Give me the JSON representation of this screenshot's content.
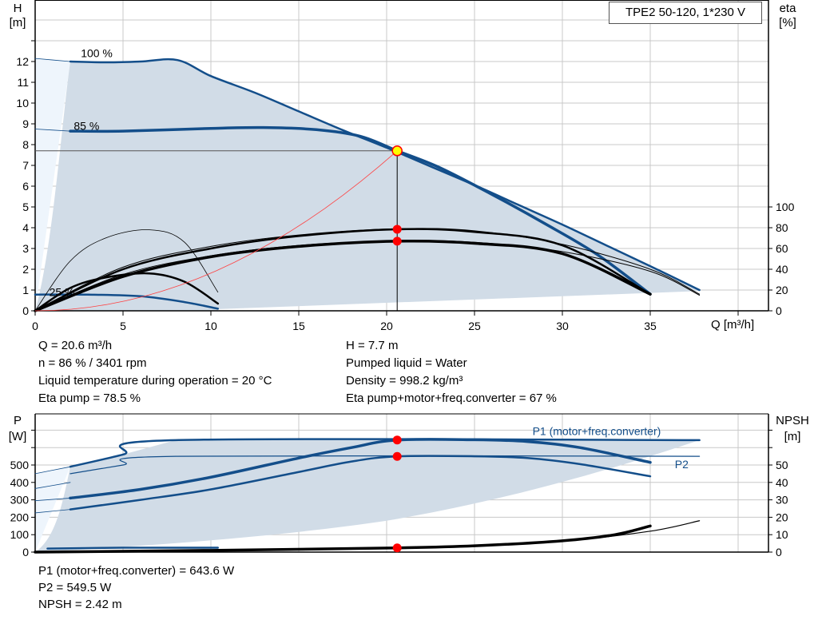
{
  "pump_label": "TPE2 50-120, 1*230 V",
  "colors": {
    "curve": "#134e8a",
    "fill": "#d1dce7",
    "fill_light": "#eef5fc",
    "duty_point": "#ff0000",
    "duty_highlight": "#ffff00",
    "system_curve": "#ff4040",
    "grid": "#c8c8c8"
  },
  "chart_data": [
    {
      "type": "line",
      "title": "",
      "xlabel": "Q [m³/h]",
      "ylabel": "H\n[m]",
      "y_unit_label": "[m]",
      "y_name": "H",
      "y2_name": "eta",
      "y2_unit_label": "[%]",
      "xlim": [
        0,
        41.7
      ],
      "ylim": [
        0,
        15
      ],
      "y2lim": [
        0,
        300
      ],
      "xticks": [
        0,
        5,
        10,
        15,
        20,
        25,
        30,
        35
      ],
      "yticks": [
        0,
        1,
        2,
        3,
        4,
        5,
        6,
        7,
        8,
        9,
        10,
        11,
        12
      ],
      "y2ticks": [
        0,
        20,
        40,
        60,
        80,
        100
      ],
      "grid": true,
      "speed_labels": [
        {
          "text": "100 %",
          "q": 2.6,
          "h": 12.4
        },
        {
          "text": "85 %",
          "q": 2.2,
          "h": 8.9
        },
        {
          "text": "25 %",
          "q": 0.8,
          "h": 0.9
        }
      ],
      "series": [
        {
          "id": "h-100",
          "axis": "H",
          "points": [
            [
              2,
              12.0
            ],
            [
              4,
              11.96
            ],
            [
              6,
              12.0
            ],
            [
              8.1,
              12.07
            ],
            [
              10,
              11.3
            ],
            [
              12.5,
              10.5
            ],
            [
              15,
              9.6
            ],
            [
              17.5,
              8.7
            ],
            [
              20,
              7.85
            ],
            [
              22.5,
              6.95
            ],
            [
              25,
              6.05
            ],
            [
              27.5,
              5.1
            ],
            [
              30,
              4.15
            ],
            [
              32.5,
              3.15
            ],
            [
              35,
              2.15
            ],
            [
              37.8,
              1.0
            ]
          ],
          "width": 2.5
        },
        {
          "id": "h-100-ext",
          "axis": "H",
          "points": [
            [
              0,
              12.15
            ],
            [
              2,
              12.0
            ]
          ],
          "width": 0.8
        },
        {
          "id": "h-85",
          "axis": "H",
          "points": [
            [
              2,
              8.65
            ],
            [
              5,
              8.65
            ],
            [
              10,
              8.78
            ],
            [
              13,
              8.82
            ],
            [
              16,
              8.72
            ],
            [
              18.5,
              8.4
            ],
            [
              20.6,
              7.7
            ],
            [
              23,
              6.9
            ],
            [
              26,
              5.6
            ],
            [
              29,
              4.2
            ],
            [
              32,
              2.7
            ],
            [
              35,
              0.8
            ]
          ],
          "width": 3.5
        },
        {
          "id": "h-85-ext",
          "axis": "H",
          "points": [
            [
              0,
              8.75
            ],
            [
              2,
              8.65
            ]
          ],
          "width": 0.8
        },
        {
          "id": "h-25",
          "axis": "H",
          "points": [
            [
              0,
              0.78
            ],
            [
              3,
              0.78
            ],
            [
              6,
              0.7
            ],
            [
              8.5,
              0.42
            ],
            [
              10.4,
              0.1
            ]
          ],
          "width": 2.5
        },
        {
          "id": "eta-pump-max",
          "axis": "eta",
          "points": [
            [
              0,
              0
            ],
            [
              5,
              42
            ],
            [
              10,
              62
            ],
            [
              15,
              73
            ],
            [
              20.6,
              79
            ],
            [
              25,
              77
            ],
            [
              30,
              64
            ],
            [
              35,
              40
            ],
            [
              37.8,
              16
            ]
          ],
          "width": 1,
          "color": "#000"
        },
        {
          "id": "eta-pump",
          "axis": "eta",
          "points": [
            [
              0,
              0
            ],
            [
              5,
              40
            ],
            [
              10,
              60
            ],
            [
              15,
              72
            ],
            [
              20.6,
              78.5
            ],
            [
              25,
              76
            ],
            [
              30,
              63
            ],
            [
              35,
              16
            ]
          ],
          "width": 2.5,
          "color": "#000"
        },
        {
          "id": "eta-total-max",
          "axis": "eta",
          "points": [
            [
              0,
              0
            ],
            [
              5,
              35
            ],
            [
              10,
              53
            ],
            [
              15,
              63
            ],
            [
              20.6,
              67.5
            ],
            [
              25,
              66
            ],
            [
              30,
              57
            ],
            [
              35,
              38
            ],
            [
              37.8,
              15
            ]
          ],
          "width": 1,
          "color": "#000"
        },
        {
          "id": "eta-total",
          "axis": "eta",
          "points": [
            [
              0,
              0
            ],
            [
              5,
              33
            ],
            [
              10,
              52
            ],
            [
              15,
              62
            ],
            [
              20.6,
              67
            ],
            [
              25,
              65
            ],
            [
              30,
              55
            ],
            [
              35,
              16
            ]
          ],
          "width": 3.5,
          "color": "#000"
        },
        {
          "id": "eta-25-pump",
          "axis": "eta",
          "points": [
            [
              0,
              0
            ],
            [
              2,
              48
            ],
            [
              4,
              70
            ],
            [
              6.5,
              78
            ],
            [
              8.5,
              66
            ],
            [
              10.4,
              18
            ]
          ],
          "width": 0.8,
          "color": "#000"
        },
        {
          "id": "eta-25-total",
          "axis": "eta",
          "points": [
            [
              0,
              0
            ],
            [
              2,
              22
            ],
            [
              4,
              32
            ],
            [
              6.5,
              36
            ],
            [
              8.5,
              28
            ],
            [
              10.4,
              7
            ]
          ],
          "width": 2.5,
          "color": "#000"
        }
      ],
      "duty_point": {
        "q": 20.6,
        "h": 7.7,
        "eta_pump": 78.5,
        "eta_total": 67
      }
    },
    {
      "type": "line",
      "title": "",
      "ylabel": "P",
      "y_unit_label": "[W]",
      "y2_name": "NPSH",
      "y2_unit_label": "[m]",
      "xlim": [
        0,
        41.7
      ],
      "ylim": [
        0,
        800
      ],
      "y2lim": [
        0,
        80
      ],
      "yticks": [
        0,
        100,
        200,
        300,
        400,
        500
      ],
      "y2ticks": [
        0,
        10,
        20,
        30,
        40,
        50
      ],
      "grid": true,
      "series_labels": [
        {
          "text": "P1 (motor+freq.converter)",
          "q": 28.3,
          "p": 695
        },
        {
          "text": "P2",
          "q": 36.4,
          "p": 505
        }
      ],
      "series": [
        {
          "id": "p1-max",
          "axis": "P",
          "points": [
            [
              2,
              490
            ],
            [
              5,
              560
            ],
            [
              8,
              643
            ],
            [
              37.8,
              643
            ]
          ],
          "width": 2.5
        },
        {
          "id": "p1-max-ext",
          "axis": "P",
          "points": [
            [
              0,
              450
            ],
            [
              2,
              490
            ]
          ],
          "width": 0.8
        },
        {
          "id": "p2-max",
          "axis": "P",
          "points": [
            [
              2,
              450
            ],
            [
              5,
              500
            ],
            [
              8,
              550
            ],
            [
              37.8,
              550
            ]
          ],
          "width": 1.2
        },
        {
          "id": "p2-max-ext",
          "axis": "P",
          "points": [
            [
              0,
              365
            ],
            [
              2,
              400
            ]
          ],
          "width": 0.8
        },
        {
          "id": "p1-85",
          "axis": "P",
          "points": [
            [
              2,
              310
            ],
            [
              6,
              360
            ],
            [
              10,
              430
            ],
            [
              15,
              540
            ],
            [
              18,
              600
            ],
            [
              20.6,
              643.6
            ],
            [
              25,
              645
            ],
            [
              28,
              635
            ],
            [
              31,
              600
            ],
            [
              35,
              515
            ]
          ],
          "width": 3.5
        },
        {
          "id": "p1-85-ext",
          "axis": "P",
          "points": [
            [
              0,
              295
            ],
            [
              2,
              310
            ]
          ],
          "width": 0.8
        },
        {
          "id": "p2-85",
          "axis": "P",
          "points": [
            [
              2,
              245
            ],
            [
              6,
              300
            ],
            [
              10,
              360
            ],
            [
              15,
              460
            ],
            [
              18,
              520
            ],
            [
              20.6,
              549.5
            ],
            [
              25,
              550
            ],
            [
              28,
              540
            ],
            [
              31,
              505
            ],
            [
              35,
              435
            ]
          ],
          "width": 2.5
        },
        {
          "id": "p2-85-ext",
          "axis": "P",
          "points": [
            [
              0,
              225
            ],
            [
              2,
              245
            ]
          ],
          "width": 0.8
        },
        {
          "id": "p-25",
          "axis": "P",
          "points": [
            [
              0.7,
              20
            ],
            [
              5,
              25
            ],
            [
              10.4,
              25
            ]
          ],
          "width": 2.5
        },
        {
          "id": "npsh-85",
          "axis": "NPSH",
          "points": [
            [
              0,
              0
            ],
            [
              10,
              1
            ],
            [
              20.6,
              2.42
            ],
            [
              25,
              3.6
            ],
            [
              30,
              6.5
            ],
            [
              33,
              10
            ],
            [
              35,
              15
            ]
          ],
          "width": 3.5,
          "color": "#000"
        },
        {
          "id": "npsh-max",
          "axis": "NPSH",
          "points": [
            [
              0,
              0
            ],
            [
              10,
              1
            ],
            [
              20.6,
              2.42
            ],
            [
              25,
              3.6
            ],
            [
              30,
              6.3
            ],
            [
              35,
              12
            ],
            [
              37.8,
              18
            ]
          ],
          "width": 1.2,
          "color": "#000"
        }
      ],
      "duty_point": {
        "q": 20.6,
        "p1": 643.6,
        "p2": 549.5,
        "npsh": 2.42
      }
    }
  ],
  "readouts_top": {
    "q": "Q = 20.6 m³/h",
    "n": "n = 86 % / 3401 rpm",
    "temp": "Liquid temperature during operation = 20 °C",
    "eta_pump": "Eta pump = 78.5 %",
    "h": "H = 7.7 m",
    "liquid": "Pumped liquid = Water",
    "density": "Density = 998.2 kg/m³",
    "eta_total": "Eta pump+motor+freq.converter = 67 %"
  },
  "readouts_bottom": {
    "p1": "P1 (motor+freq.converter) = 643.6 W",
    "p2": "P2 = 549.5 W",
    "npsh": "NPSH = 2.42 m"
  },
  "axis_text": {
    "h": "H",
    "h_unit": "[m]",
    "eta": "eta",
    "eta_unit": "[%]",
    "q": "Q [m³/h]",
    "p": "P",
    "p_unit": "[W]",
    "npsh": "NPSH",
    "npsh_unit": "[m]"
  }
}
